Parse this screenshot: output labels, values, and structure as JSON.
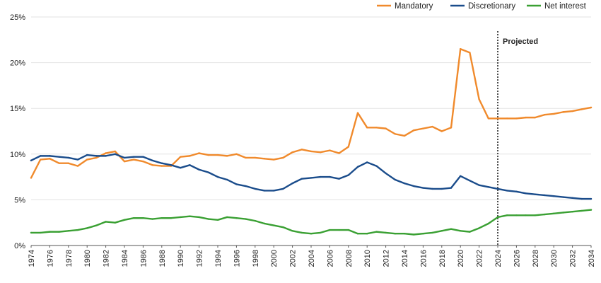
{
  "chart_data": {
    "type": "line",
    "title": "",
    "xlabel": "",
    "ylabel": "",
    "ylim": [
      0,
      25
    ],
    "yticks": [
      0,
      5,
      10,
      15,
      20,
      25
    ],
    "ytick_labels": [
      "0%",
      "5%",
      "10%",
      "15%",
      "20%",
      "25%"
    ],
    "xlim": [
      1974,
      2034
    ],
    "xticks": [
      1974,
      1976,
      1978,
      1980,
      1982,
      1984,
      1986,
      1988,
      1990,
      1992,
      1994,
      1996,
      1998,
      2000,
      2002,
      2004,
      2006,
      2008,
      2010,
      2012,
      2014,
      2016,
      2018,
      2020,
      2022,
      2024,
      2026,
      2028,
      2030,
      2032,
      2034
    ],
    "grid": true,
    "legend_position": "top-right",
    "annotation": {
      "x": 2024,
      "label": "Projected",
      "style": "dotted-vertical-line"
    },
    "x": [
      1974,
      1975,
      1976,
      1977,
      1978,
      1979,
      1980,
      1981,
      1982,
      1983,
      1984,
      1985,
      1986,
      1987,
      1988,
      1989,
      1990,
      1991,
      1992,
      1993,
      1994,
      1995,
      1996,
      1997,
      1998,
      1999,
      2000,
      2001,
      2002,
      2003,
      2004,
      2005,
      2006,
      2007,
      2008,
      2009,
      2010,
      2011,
      2012,
      2013,
      2014,
      2015,
      2016,
      2017,
      2018,
      2019,
      2020,
      2021,
      2022,
      2023,
      2024,
      2025,
      2026,
      2027,
      2028,
      2029,
      2030,
      2031,
      2032,
      2033,
      2034
    ],
    "series": [
      {
        "name": "Mandatory",
        "color": "#f08a2c",
        "values": [
          7.4,
          9.4,
          9.5,
          9.0,
          9.0,
          8.7,
          9.4,
          9.6,
          10.1,
          10.3,
          9.2,
          9.4,
          9.2,
          8.8,
          8.7,
          8.7,
          9.7,
          9.8,
          10.1,
          9.9,
          9.9,
          9.8,
          10.0,
          9.6,
          9.6,
          9.5,
          9.4,
          9.6,
          10.2,
          10.5,
          10.3,
          10.2,
          10.4,
          10.1,
          10.8,
          14.5,
          12.9,
          12.9,
          12.8,
          12.2,
          12.0,
          12.6,
          12.8,
          13.0,
          12.5,
          12.9,
          21.5,
          21.1,
          16.0,
          13.9,
          13.9,
          13.9,
          13.9,
          14.0,
          14.0,
          14.3,
          14.4,
          14.6,
          14.7,
          14.9,
          15.1
        ]
      },
      {
        "name": "Discretionary",
        "color": "#1a4c8b",
        "values": [
          9.3,
          9.8,
          9.8,
          9.7,
          9.6,
          9.4,
          9.9,
          9.8,
          9.8,
          10.0,
          9.6,
          9.7,
          9.7,
          9.3,
          9.0,
          8.8,
          8.5,
          8.8,
          8.3,
          8.0,
          7.5,
          7.2,
          6.7,
          6.5,
          6.2,
          6.0,
          6.0,
          6.2,
          6.8,
          7.3,
          7.4,
          7.5,
          7.5,
          7.3,
          7.7,
          8.6,
          9.1,
          8.7,
          7.9,
          7.2,
          6.8,
          6.5,
          6.3,
          6.2,
          6.2,
          6.3,
          7.6,
          7.1,
          6.6,
          6.4,
          6.2,
          6.0,
          5.9,
          5.7,
          5.6,
          5.5,
          5.4,
          5.3,
          5.2,
          5.1,
          5.1
        ]
      },
      {
        "name": "Net interest",
        "color": "#3aa033",
        "values": [
          1.4,
          1.4,
          1.5,
          1.5,
          1.6,
          1.7,
          1.9,
          2.2,
          2.6,
          2.5,
          2.8,
          3.0,
          3.0,
          2.9,
          3.0,
          3.0,
          3.1,
          3.2,
          3.1,
          2.9,
          2.8,
          3.1,
          3.0,
          2.9,
          2.7,
          2.4,
          2.2,
          2.0,
          1.6,
          1.4,
          1.3,
          1.4,
          1.7,
          1.7,
          1.7,
          1.3,
          1.3,
          1.5,
          1.4,
          1.3,
          1.3,
          1.2,
          1.3,
          1.4,
          1.6,
          1.8,
          1.6,
          1.5,
          1.9,
          2.4,
          3.1,
          3.3,
          3.3,
          3.3,
          3.3,
          3.4,
          3.5,
          3.6,
          3.7,
          3.8,
          3.9
        ]
      }
    ]
  }
}
